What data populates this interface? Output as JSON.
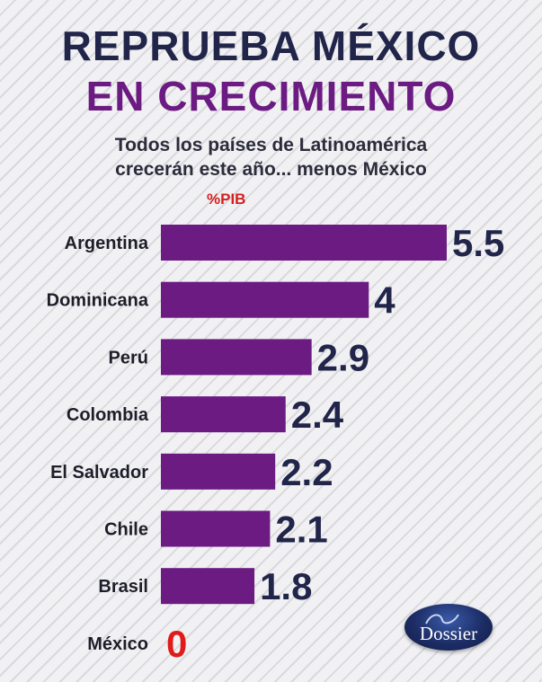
{
  "header": {
    "title_line1": "REPRUEBA MÉXICO",
    "title_line2": "EN CRECIMIENTO",
    "subtitle_line1": "Todos los países de Latinoamérica",
    "subtitle_line2": "crecerán este año... menos México",
    "unit_label": "%PIB"
  },
  "logo": {
    "text": "Dossier"
  },
  "colors": {
    "bar": "#6b1b82",
    "value_text": "#22254a",
    "zero_value": "#e01b1b",
    "title_dark": "#22254a",
    "title_purple": "#6b1b82"
  },
  "chart_data": {
    "type": "bar",
    "orientation": "horizontal",
    "categories": [
      "Argentina",
      "Dominicana",
      "Perú",
      "Colombia",
      "El Salvador",
      "Chile",
      "Brasil",
      "México"
    ],
    "values": [
      5.5,
      4,
      2.9,
      2.4,
      2.2,
      2.1,
      1.8,
      0
    ],
    "value_labels": [
      "5.5",
      "4",
      "2.9",
      "2.4",
      "2.2",
      "2.1",
      "1.8",
      "0"
    ],
    "title": "REPRUEBA MÉXICO EN CRECIMIENTO",
    "subtitle": "Todos los países de Latinoamérica crecerán este año... menos México",
    "unit": "%PIB",
    "xlim": [
      0,
      5.5
    ],
    "grid": false,
    "legend": "none"
  }
}
